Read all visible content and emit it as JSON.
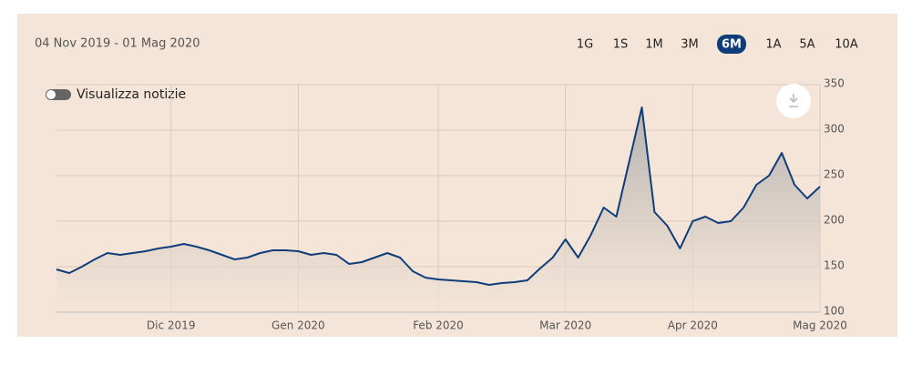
{
  "date_range": "04 Nov 2019 - 01 Mag 2020",
  "ranges": [
    "1G",
    "1S",
    "1M",
    "3M",
    "6M",
    "1A",
    "5A",
    "10A"
  ],
  "selected_range": "6M",
  "news_toggle": "Visualizza notizie",
  "chart_data": {
    "type": "area",
    "color": "#0f3d7a",
    "categories": [
      null,
      null,
      null,
      null,
      null,
      null,
      null,
      null,
      null,
      "Dic 2019",
      null,
      null,
      null,
      null,
      null,
      null,
      null,
      null,
      null,
      "Gen 2020",
      null,
      null,
      null,
      null,
      null,
      null,
      null,
      null,
      null,
      null,
      "Feb 2020",
      null,
      null,
      null,
      null,
      null,
      null,
      null,
      null,
      null,
      "Mar 2020",
      null,
      null,
      null,
      null,
      null,
      null,
      null,
      null,
      null,
      "Apr 2020",
      null,
      null,
      null,
      null,
      null,
      null,
      null,
      null,
      null,
      "Mag 2020"
    ],
    "values": [
      147,
      143,
      150,
      158,
      165,
      163,
      165,
      167,
      170,
      172,
      175,
      172,
      168,
      163,
      158,
      160,
      165,
      168,
      168,
      167,
      163,
      165,
      163,
      153,
      155,
      160,
      165,
      160,
      145,
      138,
      136,
      135,
      134,
      133,
      130,
      132,
      133,
      135,
      148,
      160,
      180,
      160,
      185,
      215,
      205,
      265,
      325,
      210,
      195,
      170,
      200,
      205,
      198,
      200,
      215,
      240,
      250,
      275,
      240,
      225,
      238
    ],
    "ylim": [
      100,
      350
    ],
    "yticks": [
      100,
      150,
      200,
      250,
      300,
      350
    ],
    "grid": true
  }
}
